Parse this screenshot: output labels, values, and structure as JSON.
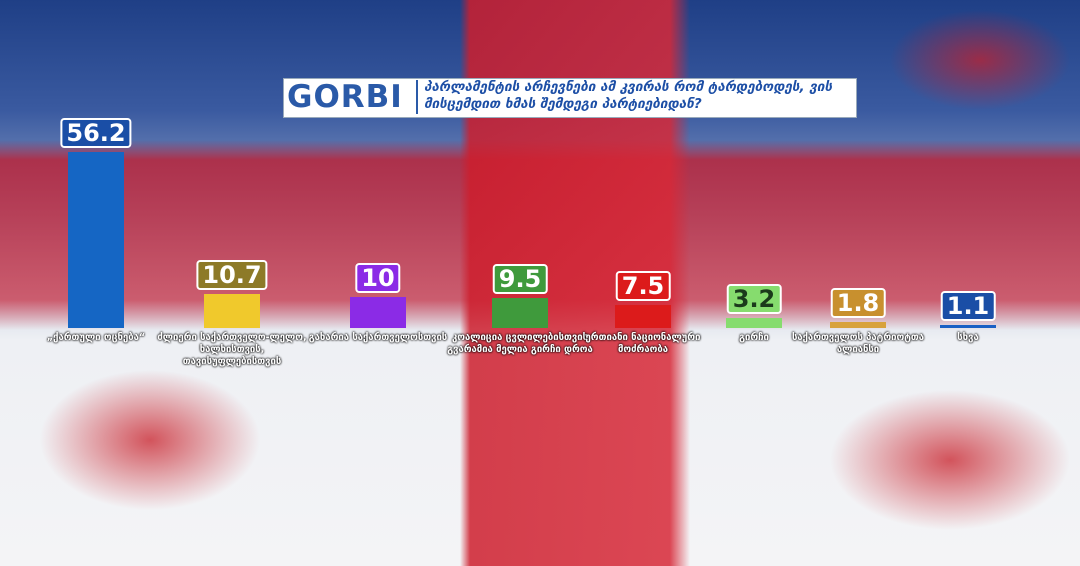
{
  "logo": "GORBI",
  "chart_data": {
    "type": "bar",
    "title": "პარლამენტის არჩევნები ამ კვირას რომ ტარდებოდეს, ვის მისცემდით ხმას შემდეგი პარტიებიდან?",
    "categories": [
      "„ქართული ოცნება“",
      "ძლიერი საქართველო-ლელო, ხალხისთვის, თავისუფლებისთვის",
      "გახარია საქართველოსთვის",
      "კოალიცია ცვლილებისთვის გვარამია მელია გირჩი დროა",
      "ერთიანი ნაციონალური მოძრაობა",
      "გირჩი",
      "საქართველოს პატრიოტთა ალიანსი",
      "სხვა"
    ],
    "values": [
      56.2,
      10.7,
      10,
      9.5,
      7.5,
      3.2,
      1.8,
      1.1
    ],
    "colors": [
      "#1566c4",
      "#f0c92c",
      "#8b2be6",
      "#3f9a3c",
      "#dc1b1b",
      "#86dc6e",
      "#d8a23c",
      "#1a60c4"
    ],
    "label_colors": [
      "#1a4ea6",
      "#8d7a28",
      "#8b2be6",
      "#3f9a3c",
      "#dc1b1b",
      "#86dc6e",
      "#c8902e",
      "#1a4ea6"
    ],
    "ylim": [
      0,
      60
    ]
  }
}
